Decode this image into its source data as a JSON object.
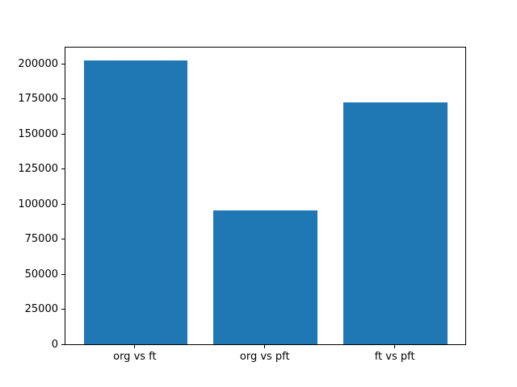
{
  "chart_data": {
    "type": "bar",
    "title": "",
    "xlabel": "",
    "ylabel": "",
    "categories": [
      "org vs ft",
      "org vs pft",
      "ft vs pft"
    ],
    "values": [
      202500,
      95400,
      172400
    ],
    "yticks": [
      0,
      25000,
      50000,
      75000,
      100000,
      125000,
      150000,
      175000,
      200000
    ],
    "ytick_labels": [
      "0",
      "25000",
      "50000",
      "75000",
      "100000",
      "125000",
      "150000",
      "175000",
      "200000"
    ],
    "ylim": [
      0,
      212400
    ],
    "xlim": [
      -0.54,
      2.54
    ],
    "bar_width": 0.8,
    "bar_color": "#1f77b4",
    "axes_color": "#000000",
    "background_color": "#ffffff",
    "grid": false,
    "legend": null
  }
}
